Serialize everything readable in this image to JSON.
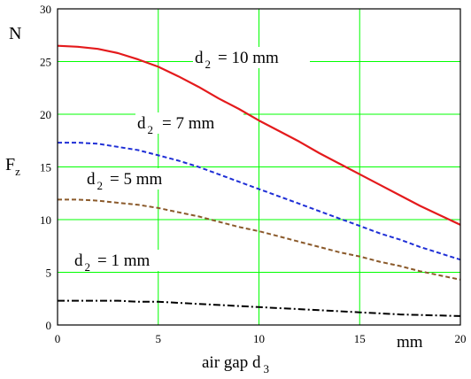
{
  "chart_data": {
    "type": "line",
    "x": [
      0,
      1,
      2,
      3,
      4,
      5,
      6,
      7,
      8,
      9,
      10,
      11,
      12,
      13,
      14,
      15,
      16,
      17,
      18,
      19,
      20
    ],
    "series": [
      {
        "name": "d 2 = 10 mm",
        "color": "#e41a1c",
        "style": "solid",
        "values": [
          26.5,
          26.4,
          26.2,
          25.8,
          25.2,
          24.5,
          23.6,
          22.6,
          21.5,
          20.5,
          19.4,
          18.4,
          17.4,
          16.3,
          15.3,
          14.3,
          13.3,
          12.3,
          11.3,
          10.4,
          9.5
        ]
      },
      {
        "name": "d 2 = 7 mm",
        "color": "#1f2fd6",
        "style": "dashed",
        "values": [
          17.3,
          17.3,
          17.2,
          16.9,
          16.6,
          16.1,
          15.6,
          15.0,
          14.3,
          13.6,
          12.9,
          12.2,
          11.5,
          10.8,
          10.1,
          9.4,
          8.7,
          8.1,
          7.4,
          6.8,
          6.2
        ]
      },
      {
        "name": "d 2 = 5 mm",
        "color": "#8b5a2b",
        "style": "dashed",
        "values": [
          11.9,
          11.9,
          11.8,
          11.6,
          11.4,
          11.1,
          10.7,
          10.3,
          9.8,
          9.3,
          8.9,
          8.4,
          7.9,
          7.4,
          6.9,
          6.5,
          6.0,
          5.6,
          5.1,
          4.7,
          4.3
        ]
      },
      {
        "name": "d 2 = 1 mm",
        "color": "#000000",
        "style": "dashdot",
        "values": [
          2.3,
          2.3,
          2.3,
          2.3,
          2.2,
          2.2,
          2.1,
          2.0,
          1.9,
          1.8,
          1.7,
          1.6,
          1.5,
          1.4,
          1.3,
          1.2,
          1.1,
          1.0,
          0.95,
          0.9,
          0.85
        ]
      }
    ],
    "xlim": [
      0,
      20
    ],
    "ylim": [
      0,
      30
    ],
    "x_ticks": [
      "0",
      "5",
      "10",
      "15",
      "20"
    ],
    "y_ticks": [
      "0",
      "5",
      "10",
      "15",
      "20",
      "25",
      "30"
    ],
    "xlabel": "air gap d",
    "xlabel_sub": "3",
    "x_unit": "mm",
    "ylabel": "F",
    "ylabel_sub": "z",
    "y_unit": "N",
    "grid": true,
    "grid_color": "#00ff00",
    "annotations": [
      {
        "main": "d",
        "sub": "2",
        "rest": "= 10 mm"
      },
      {
        "main": "d",
        "sub": "2",
        "rest": "= 7 mm"
      },
      {
        "main": "d",
        "sub": "2",
        "rest": "= 5 mm"
      },
      {
        "main": "d",
        "sub": "2",
        "rest": "= 1 mm"
      }
    ]
  }
}
